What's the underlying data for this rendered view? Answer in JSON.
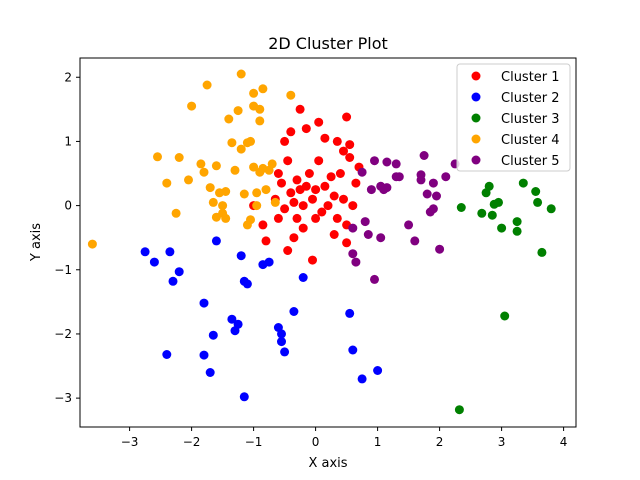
{
  "chart_data": {
    "type": "scatter",
    "title": "2D Cluster Plot",
    "xlabel": "X axis",
    "ylabel": "Y axis",
    "xlim": [
      -3.8,
      4.2
    ],
    "ylim": [
      -3.45,
      2.3
    ],
    "xticks": [
      -3,
      -2,
      -1,
      0,
      1,
      2,
      3,
      4
    ],
    "yticks": [
      -3,
      -2,
      -1,
      0,
      1,
      2
    ],
    "grid": false,
    "legend_position": "top-right",
    "series": [
      {
        "name": "Cluster 1",
        "color": "#ff0000",
        "points": [
          [
            -1.0,
            0.0
          ],
          [
            -0.85,
            -0.3
          ],
          [
            -0.8,
            -0.55
          ],
          [
            -0.65,
            0.1
          ],
          [
            -0.6,
            0.5
          ],
          [
            -0.55,
            0.35
          ],
          [
            -0.5,
            -0.05
          ],
          [
            -0.45,
            0.7
          ],
          [
            -0.4,
            0.2
          ],
          [
            -0.35,
            0.05
          ],
          [
            -0.3,
            0.4
          ],
          [
            -0.3,
            -0.2
          ],
          [
            -0.25,
            0.25
          ],
          [
            -0.2,
            0.0
          ],
          [
            -0.15,
            0.3
          ],
          [
            -0.1,
            0.5
          ],
          [
            -0.05,
            0.1
          ],
          [
            0.0,
            0.25
          ],
          [
            0.05,
            0.7
          ],
          [
            0.1,
            -0.1
          ],
          [
            0.15,
            0.3
          ],
          [
            0.2,
            0.0
          ],
          [
            0.25,
            0.45
          ],
          [
            0.3,
            0.15
          ],
          [
            0.35,
            -0.2
          ],
          [
            0.4,
            0.5
          ],
          [
            0.45,
            0.1
          ],
          [
            0.5,
            -0.3
          ],
          [
            0.55,
            0.75
          ],
          [
            0.6,
            0.0
          ],
          [
            0.65,
            0.35
          ],
          [
            -0.4,
            1.15
          ],
          [
            -0.25,
            1.5
          ],
          [
            -0.15,
            1.2
          ],
          [
            0.05,
            1.3
          ],
          [
            0.15,
            1.05
          ],
          [
            0.35,
            1.0
          ],
          [
            0.5,
            1.38
          ],
          [
            -0.5,
            1.0
          ],
          [
            -0.45,
            -0.7
          ],
          [
            -0.05,
            -0.85
          ],
          [
            0.5,
            -0.58
          ],
          [
            0.55,
            0.95
          ],
          [
            -0.6,
            -0.2
          ],
          [
            0.3,
            -0.45
          ],
          [
            -0.2,
            -0.35
          ],
          [
            0.7,
            0.6
          ],
          [
            0.45,
            0.85
          ],
          [
            -0.35,
            -0.5
          ],
          [
            0.0,
            -0.2
          ]
        ]
      },
      {
        "name": "Cluster 2",
        "color": "#0000ff",
        "points": [
          [
            -2.75,
            -0.72
          ],
          [
            -2.6,
            -0.88
          ],
          [
            -2.4,
            -2.32
          ],
          [
            -2.35,
            -0.72
          ],
          [
            -2.3,
            -1.18
          ],
          [
            -2.2,
            -1.03
          ],
          [
            -1.8,
            -1.52
          ],
          [
            -1.8,
            -2.33
          ],
          [
            -1.7,
            -2.6
          ],
          [
            -1.65,
            -2.02
          ],
          [
            -1.6,
            -0.55
          ],
          [
            -1.35,
            -1.77
          ],
          [
            -1.3,
            -1.95
          ],
          [
            -1.25,
            -1.85
          ],
          [
            -1.2,
            -0.78
          ],
          [
            -1.15,
            -2.98
          ],
          [
            -1.15,
            -1.18
          ],
          [
            -1.1,
            -1.22
          ],
          [
            -0.85,
            -0.92
          ],
          [
            -0.75,
            -0.88
          ],
          [
            -0.6,
            -1.9
          ],
          [
            -0.55,
            -2.12
          ],
          [
            -0.55,
            -2.0
          ],
          [
            -0.5,
            -2.28
          ],
          [
            -0.35,
            -1.65
          ],
          [
            -0.2,
            -1.12
          ],
          [
            0.55,
            -1.68
          ],
          [
            0.6,
            -2.25
          ],
          [
            0.75,
            -2.7
          ],
          [
            1.0,
            -2.57
          ]
        ]
      },
      {
        "name": "Cluster 3",
        "color": "#008000",
        "points": [
          [
            2.32,
            -3.18
          ],
          [
            2.35,
            -0.03
          ],
          [
            2.68,
            -0.12
          ],
          [
            2.75,
            0.2
          ],
          [
            2.8,
            0.3
          ],
          [
            2.85,
            -0.15
          ],
          [
            2.88,
            0.02
          ],
          [
            2.95,
            0.05
          ],
          [
            3.0,
            -0.35
          ],
          [
            3.05,
            -1.72
          ],
          [
            3.25,
            -0.25
          ],
          [
            3.25,
            -0.4
          ],
          [
            3.35,
            0.35
          ],
          [
            3.55,
            0.22
          ],
          [
            3.58,
            0.05
          ],
          [
            3.65,
            -0.73
          ],
          [
            3.8,
            -0.05
          ]
        ]
      },
      {
        "name": "Cluster 4",
        "color": "#ffa500",
        "points": [
          [
            -3.6,
            -0.6
          ],
          [
            -2.55,
            0.76
          ],
          [
            -2.4,
            0.35
          ],
          [
            -2.25,
            -0.12
          ],
          [
            -2.2,
            0.75
          ],
          [
            -2.05,
            0.4
          ],
          [
            -2.0,
            1.55
          ],
          [
            -1.85,
            0.65
          ],
          [
            -1.8,
            0.52
          ],
          [
            -1.75,
            1.88
          ],
          [
            -1.7,
            0.28
          ],
          [
            -1.65,
            0.05
          ],
          [
            -1.6,
            -0.18
          ],
          [
            -1.6,
            0.62
          ],
          [
            -1.55,
            0.2
          ],
          [
            -1.5,
            0.0
          ],
          [
            -1.5,
            -0.12
          ],
          [
            -1.45,
            -0.2
          ],
          [
            -1.45,
            0.22
          ],
          [
            -1.4,
            1.35
          ],
          [
            -1.35,
            0.98
          ],
          [
            -1.3,
            0.55
          ],
          [
            -1.25,
            1.48
          ],
          [
            -1.2,
            2.05
          ],
          [
            -1.2,
            0.88
          ],
          [
            -1.15,
            0.18
          ],
          [
            -1.1,
            0.98
          ],
          [
            -1.05,
            -0.22
          ],
          [
            -1.05,
            1.0
          ],
          [
            -1.0,
            0.6
          ],
          [
            -1.0,
            1.75
          ],
          [
            -1.0,
            1.55
          ],
          [
            -0.95,
            0.2
          ],
          [
            -0.9,
            0.52
          ],
          [
            -0.9,
            1.32
          ],
          [
            -0.9,
            1.5
          ],
          [
            -0.85,
            1.82
          ],
          [
            -0.85,
            0.58
          ],
          [
            -0.8,
            0.25
          ],
          [
            -0.75,
            0.55
          ],
          [
            -0.7,
            0.65
          ],
          [
            -0.65,
            0.05
          ],
          [
            -0.4,
            1.72
          ],
          [
            -0.95,
            0.0
          ],
          [
            -1.1,
            -0.3
          ]
        ]
      },
      {
        "name": "Cluster 5",
        "color": "#800080",
        "points": [
          [
            0.6,
            -0.35
          ],
          [
            0.6,
            -0.75
          ],
          [
            0.65,
            -0.88
          ],
          [
            0.75,
            0.52
          ],
          [
            0.8,
            -0.25
          ],
          [
            0.85,
            -0.45
          ],
          [
            0.9,
            0.25
          ],
          [
            0.95,
            -1.15
          ],
          [
            0.95,
            0.7
          ],
          [
            1.05,
            -0.5
          ],
          [
            1.05,
            0.3
          ],
          [
            1.1,
            0.25
          ],
          [
            1.15,
            0.28
          ],
          [
            1.15,
            0.68
          ],
          [
            1.3,
            0.65
          ],
          [
            1.3,
            0.45
          ],
          [
            1.35,
            0.45
          ],
          [
            1.5,
            -0.3
          ],
          [
            1.6,
            -0.55
          ],
          [
            1.7,
            0.48
          ],
          [
            1.7,
            0.4
          ],
          [
            1.75,
            0.78
          ],
          [
            1.8,
            0.18
          ],
          [
            1.85,
            -0.1
          ],
          [
            1.9,
            -0.05
          ],
          [
            1.9,
            0.35
          ],
          [
            1.95,
            0.15
          ],
          [
            2.0,
            -0.68
          ],
          [
            2.1,
            0.45
          ],
          [
            2.25,
            0.65
          ]
        ]
      }
    ]
  }
}
